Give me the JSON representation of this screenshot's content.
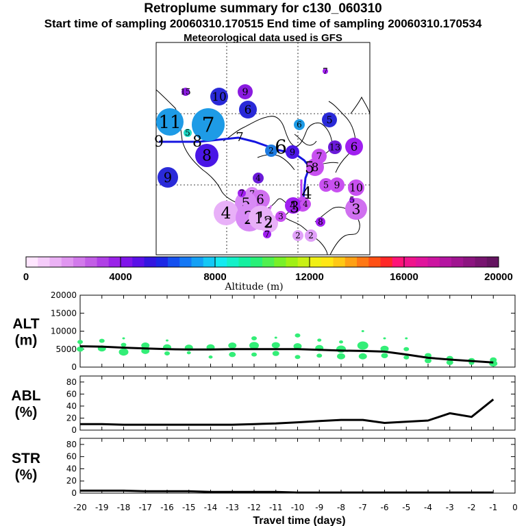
{
  "title": "Retroplume summary for c130_060310",
  "subtitle": "Start time of sampling 20060310.170515     End time of sampling 20060310.170534",
  "met_line": "Meteorological data used is GFS",
  "map_clusters": [
    {
      "label": "11",
      "c": "#1e9be6"
    },
    {
      "label": "7",
      "c": "#1e9be6"
    },
    {
      "label": "10",
      "c": "#2a2ad8"
    },
    {
      "label": "9",
      "c": "#8a1be0"
    },
    {
      "label": "6",
      "c": "#2a2ad8"
    },
    {
      "label": "15",
      "c": "#8a1be0"
    },
    {
      "label": "5",
      "c": "#1fd9c6"
    },
    {
      "label": "8",
      "c": "#4a16e6"
    },
    {
      "label": "9",
      "c": "#2a2ad8"
    },
    {
      "label": "7",
      "c": "#a020f0"
    },
    {
      "label": "6",
      "c": "#1e9be6"
    },
    {
      "label": "5",
      "c": "#2a2ad8"
    },
    {
      "label": "2",
      "c": "#1e7be0"
    },
    {
      "label": "9",
      "c": "#4a16e6"
    },
    {
      "label": "13",
      "c": "#6a1ad8"
    },
    {
      "label": "6",
      "c": "#a020f0"
    },
    {
      "label": "7",
      "c": "#c850f0"
    },
    {
      "label": "8",
      "c": "#c850f0"
    },
    {
      "label": "5",
      "c": "#c850f0"
    },
    {
      "label": "9",
      "c": "#c850f0"
    },
    {
      "label": "10",
      "c": "#c850f0"
    },
    {
      "label": "4",
      "c": "#6a1ad8"
    },
    {
      "label": "7",
      "c": "#d88af5"
    },
    {
      "label": "6",
      "c": "#d070f0"
    },
    {
      "label": "5",
      "c": "#d88af5"
    },
    {
      "label": "3",
      "c": "#c850f0"
    },
    {
      "label": "4",
      "c": "#a020f0"
    },
    {
      "label": "4",
      "c": "#e8b0f8"
    },
    {
      "label": "2",
      "c": "#d88af5"
    },
    {
      "label": "1",
      "c": "#e8b0f8"
    },
    {
      "label": "2",
      "c": "#e8b0f8"
    },
    {
      "label": "3",
      "c": "#c850f0"
    },
    {
      "label": "4",
      "c": "#c850f0"
    },
    {
      "label": "3",
      "c": "#d070f0"
    },
    {
      "label": "5",
      "c": "#a020f0"
    },
    {
      "label": "8",
      "c": "#a020f0"
    },
    {
      "label": "2",
      "c": "#e0a0f8"
    },
    {
      "label": "2",
      "c": "#e0a0f8"
    },
    {
      "label": "7",
      "c": "#a020f0"
    },
    {
      "label": "7",
      "c": "#a020f0"
    }
  ],
  "map_track_labels": [
    "9",
    "8",
    "7",
    "6",
    "5",
    "4",
    "3",
    "2",
    "1"
  ],
  "colorbar": {
    "colors": [
      "#ffe6ff",
      "#f5ccfa",
      "#ebb2f5",
      "#e096f0",
      "#d27aeb",
      "#c25ee6",
      "#b040e6",
      "#9a22e8",
      "#7f14ea",
      "#5a10e8",
      "#3416e0",
      "#1c28e6",
      "#1450f0",
      "#1478f5",
      "#14a0f5",
      "#14c8f5",
      "#14eaf0",
      "#14f0c8",
      "#14f0a0",
      "#28f078",
      "#50f050",
      "#78f028",
      "#a0f014",
      "#c8f014",
      "#f0f014",
      "#ffe614",
      "#ffc814",
      "#ffa014",
      "#ff7814",
      "#ff5014",
      "#ff2828",
      "#ff1478",
      "#f0148c",
      "#e0149c",
      "#cc14a0",
      "#b414a0",
      "#a01490",
      "#8c1480",
      "#781470",
      "#641460"
    ],
    "tick_labels": [
      "0",
      "4000",
      "8000",
      "12000",
      "16000",
      "20000"
    ],
    "tick_values": [
      0,
      4000,
      8000,
      12000,
      16000,
      20000
    ],
    "max": 20000,
    "xlabel": "Altitude (m)"
  },
  "chart_data": [
    {
      "type": "line",
      "panel": "ALT",
      "ylabel_main": "ALT",
      "ylabel_unit": "(m)",
      "ylim": [
        0,
        20000
      ],
      "y_ticks": [
        0,
        5000,
        10000,
        15000,
        20000
      ],
      "x": [
        -20,
        -19,
        -18,
        -17,
        -16,
        -15,
        -14,
        -13,
        -12,
        -11,
        -10,
        -9,
        -8,
        -7,
        -6,
        -5,
        -4,
        -3,
        -2,
        -1
      ],
      "values": [
        5800,
        5700,
        5400,
        5200,
        5000,
        4900,
        4900,
        5000,
        5000,
        5000,
        5000,
        4800,
        4600,
        4500,
        4300,
        3500,
        2600,
        2100,
        1700,
        1300
      ],
      "scatter_points": [
        [
          -20,
          7000,
          4
        ],
        [
          -20,
          5000,
          5
        ],
        [
          -19,
          7300,
          4
        ],
        [
          -19,
          5200,
          6
        ],
        [
          -18,
          8000,
          2
        ],
        [
          -18,
          6200,
          4
        ],
        [
          -18,
          4200,
          7
        ],
        [
          -17,
          6000,
          6
        ],
        [
          -17,
          4500,
          6
        ],
        [
          -16,
          7400,
          2
        ],
        [
          -16,
          5500,
          6
        ],
        [
          -16,
          3800,
          4
        ],
        [
          -15,
          5400,
          6
        ],
        [
          -15,
          4000,
          3
        ],
        [
          -14,
          5500,
          6
        ],
        [
          -14,
          2800,
          3
        ],
        [
          -13,
          6000,
          6
        ],
        [
          -13,
          3500,
          5
        ],
        [
          -12,
          8000,
          4
        ],
        [
          -12,
          6000,
          7
        ],
        [
          -12,
          3500,
          4
        ],
        [
          -11,
          8200,
          2
        ],
        [
          -11,
          6100,
          6
        ],
        [
          -11,
          3800,
          5
        ],
        [
          -10,
          8800,
          4
        ],
        [
          -10,
          5800,
          6
        ],
        [
          -10,
          2800,
          4
        ],
        [
          -9,
          7500,
          3
        ],
        [
          -9,
          5300,
          6
        ],
        [
          -9,
          3200,
          4
        ],
        [
          -8,
          7000,
          3
        ],
        [
          -8,
          5000,
          7
        ],
        [
          -8,
          3000,
          6
        ],
        [
          -7,
          10000,
          2
        ],
        [
          -7,
          6000,
          8
        ],
        [
          -7,
          3000,
          6
        ],
        [
          -6,
          8000,
          2
        ],
        [
          -6,
          5100,
          6
        ],
        [
          -6,
          3200,
          5
        ],
        [
          -5,
          8000,
          2
        ],
        [
          -5,
          5000,
          4
        ],
        [
          -5,
          2700,
          4
        ],
        [
          -4,
          3200,
          5
        ],
        [
          -4,
          1800,
          5
        ],
        [
          -3,
          2400,
          5
        ],
        [
          -3,
          1300,
          5
        ],
        [
          -2,
          1800,
          5
        ],
        [
          -2,
          1200,
          4
        ],
        [
          -1,
          2000,
          5
        ],
        [
          -1,
          1000,
          6
        ]
      ]
    },
    {
      "type": "line",
      "panel": "ABL",
      "ylabel_main": "ABL",
      "ylabel_unit": "(%)",
      "ylim": [
        0,
        90
      ],
      "y_ticks": [
        0,
        20,
        40,
        60,
        80
      ],
      "x": [
        -20,
        -19,
        -18,
        -17,
        -16,
        -15,
        -14,
        -13,
        -12,
        -11,
        -10,
        -9,
        -8,
        -7,
        -6,
        -5,
        -4,
        -3,
        -2,
        -1
      ],
      "values": [
        10,
        10,
        9,
        9,
        9,
        9,
        9,
        9,
        10,
        11,
        13,
        15,
        17,
        17,
        12,
        14,
        16,
        28,
        22,
        51
      ]
    },
    {
      "type": "line",
      "panel": "STR",
      "ylabel_main": "STR",
      "ylabel_unit": "(%)",
      "ylim": [
        0,
        90
      ],
      "y_ticks": [
        0,
        20,
        40,
        60,
        80
      ],
      "x": [
        -20,
        -19,
        -18,
        -17,
        -16,
        -15,
        -14,
        -13,
        -12,
        -11,
        -10,
        -9,
        -8,
        -7,
        -6,
        -5,
        -4,
        -3,
        -2,
        -1
      ],
      "values": [
        4,
        4,
        4,
        3,
        3,
        3,
        2,
        2,
        2,
        2,
        1,
        1,
        1,
        1,
        1,
        1,
        1,
        1,
        1,
        1
      ],
      "x_tick_labels": [
        "-20",
        "-19",
        "-18",
        "-17",
        "-16",
        "-15",
        "-14",
        "-13",
        "-12",
        "-11",
        "-10",
        "-9",
        "-8",
        "-7",
        "-6",
        "-5",
        "-4",
        "-3",
        "-2",
        "-1",
        "0"
      ],
      "xlabel": "Travel time (days)",
      "xlim": [
        -20,
        0
      ]
    }
  ]
}
